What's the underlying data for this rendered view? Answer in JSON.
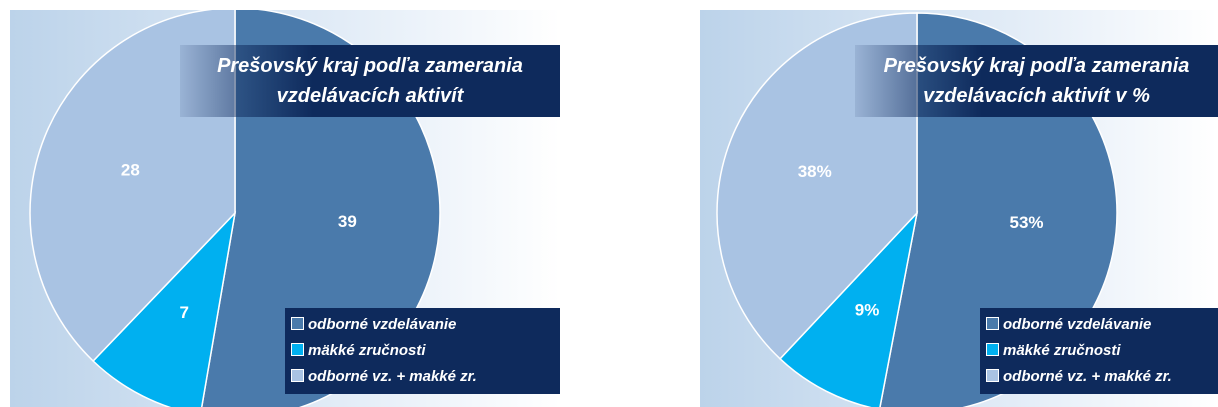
{
  "chart_data": [
    {
      "type": "pie",
      "title": "Prešovský kraj podľa zamerania vzdelávacích aktivít",
      "categories": [
        "odborné vzdelávanie",
        "mäkké zručnosti",
        "odborné vz. + makké zr."
      ],
      "values": [
        39,
        7,
        28
      ],
      "colors": [
        "#4a7aab",
        "#00b0f0",
        "#a9c3e3"
      ]
    },
    {
      "type": "pie",
      "title": "Prešovský kraj podľa zamerania vzdelávacích aktivít v %",
      "categories": [
        "odborné vzdelávanie",
        "mäkké zručnosti",
        "odborné vz. + makké zr."
      ],
      "values": [
        53,
        9,
        38
      ],
      "value_labels": [
        "53%",
        "9%",
        "38%"
      ],
      "colors": [
        "#4a7aab",
        "#00b0f0",
        "#a9c3e3"
      ]
    }
  ]
}
